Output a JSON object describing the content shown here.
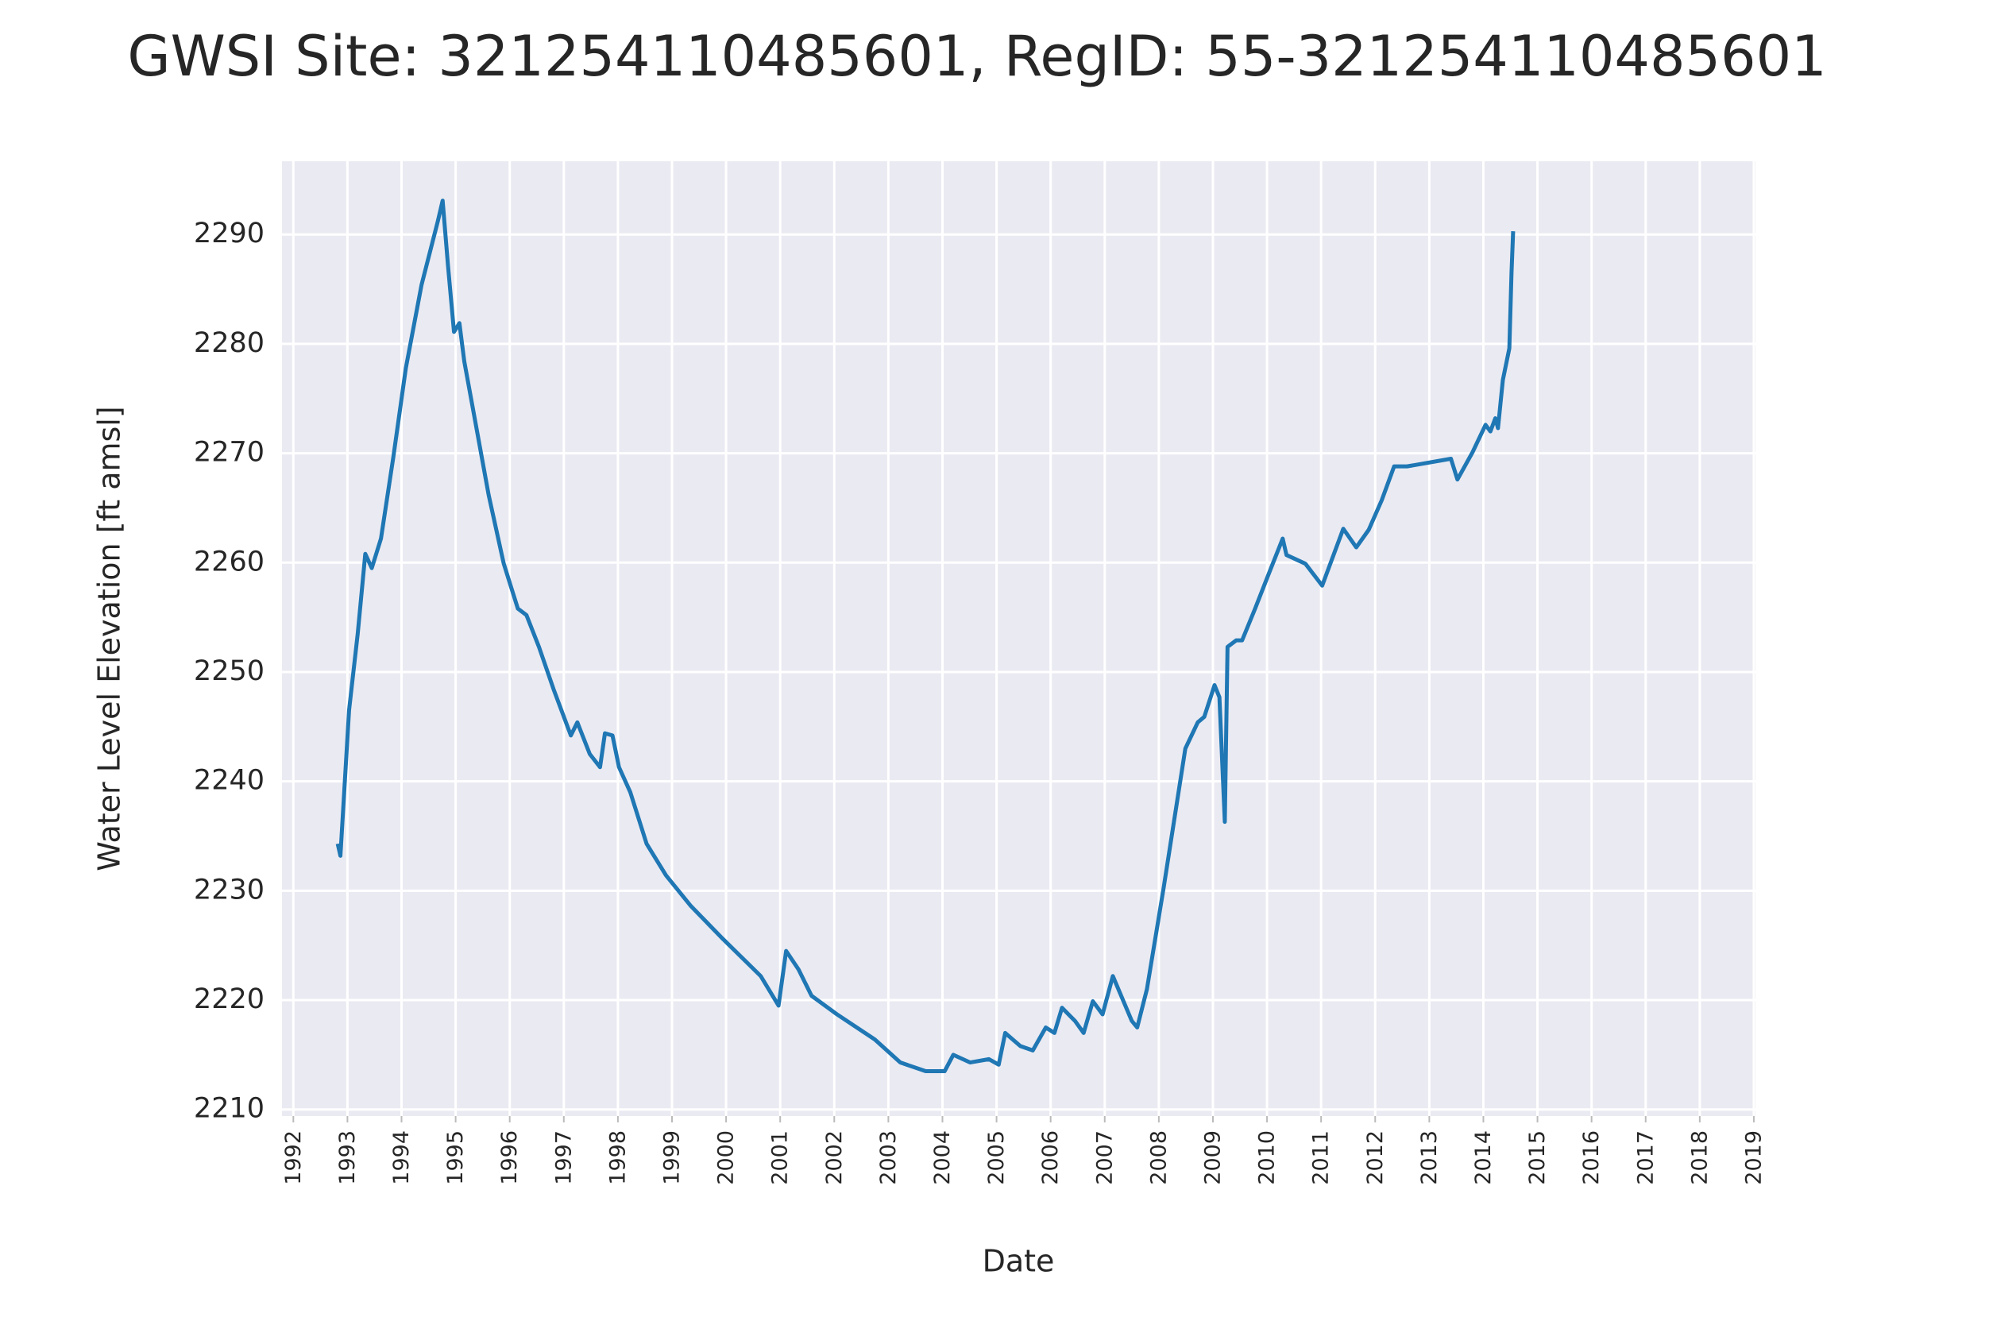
{
  "chart_data": {
    "type": "line",
    "title": "GWSI Site: 321254110485601, RegID: 55-321254110485601",
    "x_label": "Date",
    "y_label": "Water Level Elevation [ft amsl]",
    "xlim": [
      1991.79,
      2019.03
    ],
    "ylim": [
      2209.4,
      2296.7
    ],
    "xticks": [
      1992,
      1993,
      1994,
      1995,
      1996,
      1997,
      1998,
      1999,
      2000,
      2001,
      2002,
      2003,
      2004,
      2005,
      2006,
      2007,
      2008,
      2009,
      2010,
      2011,
      2012,
      2013,
      2014,
      2015,
      2016,
      2017,
      2018,
      2019
    ],
    "yticks": [
      2210,
      2220,
      2230,
      2240,
      2250,
      2260,
      2270,
      2280,
      2290
    ],
    "grid": true,
    "background": "#eaeaf2",
    "grid_color": "#ffffff",
    "series": [
      {
        "color": "#1f77b4",
        "x": [
          1992.82,
          1992.87,
          1993.03,
          1993.19,
          1993.33,
          1993.45,
          1993.62,
          1993.85,
          1994.08,
          1994.37,
          1994.67,
          1994.76,
          1994.86,
          1994.97,
          1995.07,
          1995.16,
          1995.33,
          1995.61,
          1995.89,
          1996.15,
          1996.31,
          1996.54,
          1996.82,
          1997.13,
          1997.25,
          1997.48,
          1997.67,
          1997.76,
          1997.9,
          1998.02,
          1998.23,
          1998.53,
          1998.89,
          1999.35,
          1999.94,
          2000.64,
          2000.97,
          2001.11,
          2001.34,
          2001.58,
          2002.05,
          2002.75,
          2003.22,
          2003.69,
          2004.04,
          2004.2,
          2004.51,
          2004.86,
          2005.04,
          2005.16,
          2005.44,
          2005.67,
          2005.91,
          2006.07,
          2006.21,
          2006.45,
          2006.61,
          2006.78,
          2006.96,
          2007.15,
          2007.5,
          2007.6,
          2007.78,
          2008.09,
          2008.49,
          2008.72,
          2008.84,
          2009.03,
          2009.12,
          2009.22,
          2009.27,
          2009.43,
          2009.54,
          2009.78,
          2010.01,
          2010.29,
          2010.36,
          2010.71,
          2011.02,
          2011.41,
          2011.65,
          2011.88,
          2012.12,
          2012.35,
          2012.59,
          2013.4,
          2013.52,
          2013.8,
          2014.04,
          2014.13,
          2014.22,
          2014.27,
          2014.36,
          2014.48,
          2014.52,
          2014.55
        ],
        "values": [
          2234.3,
          2233.2,
          2246.5,
          2253.5,
          2260.8,
          2259.5,
          2262.2,
          2269.7,
          2277.8,
          2285.4,
          2291.2,
          2293.1,
          2287.1,
          2281.1,
          2281.9,
          2278.4,
          2273.8,
          2266.2,
          2259.9,
          2255.8,
          2255.2,
          2252.3,
          2248.3,
          2244.2,
          2245.4,
          2242.5,
          2241.3,
          2244.4,
          2244.2,
          2241.3,
          2239.0,
          2234.3,
          2231.4,
          2228.6,
          2225.6,
          2222.2,
          2219.5,
          2224.5,
          2222.8,
          2220.4,
          2218.7,
          2216.4,
          2214.3,
          2213.5,
          2213.5,
          2215.0,
          2214.3,
          2214.6,
          2214.1,
          2217.0,
          2215.8,
          2215.4,
          2217.5,
          2217.0,
          2219.3,
          2218.1,
          2217.0,
          2219.9,
          2218.7,
          2222.2,
          2218.1,
          2217.5,
          2221.0,
          2230.3,
          2243.0,
          2245.4,
          2245.9,
          2248.8,
          2247.7,
          2236.3,
          2252.3,
          2252.9,
          2252.9,
          2255.8,
          2258.7,
          2262.2,
          2260.7,
          2259.9,
          2257.9,
          2263.1,
          2261.4,
          2263.0,
          2265.7,
          2268.8,
          2268.8,
          2269.5,
          2267.6,
          2270.1,
          2272.6,
          2272.0,
          2273.2,
          2272.3,
          2276.7,
          2279.6,
          2286.5,
          2290.3
        ]
      }
    ]
  }
}
